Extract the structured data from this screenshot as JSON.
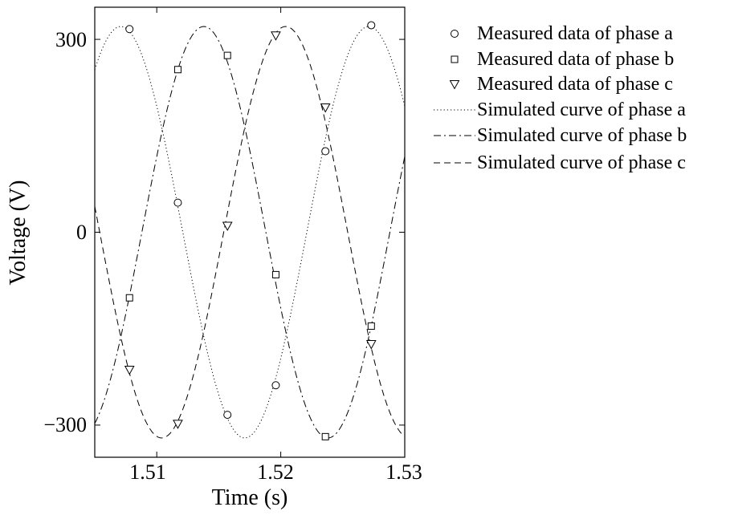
{
  "chart_data": {
    "type": "line",
    "xlabel": "Time (s)",
    "ylabel": "Voltage (V)",
    "xlim": [
      1.505,
      1.53
    ],
    "ylim": [
      -350,
      350
    ],
    "x_ticks": [
      1.51,
      1.52,
      1.53
    ],
    "x_tick_labels": [
      "1.51",
      "1.52",
      "1.53"
    ],
    "y_ticks": [
      300,
      0,
      -300
    ],
    "y_tick_labels": [
      "300",
      "0",
      "−300"
    ],
    "grid": false,
    "legend_position": "outside-right",
    "series": [
      {
        "name": "Measured data of phase a",
        "marker": "circle",
        "points": [
          {
            "x": 1.5078,
            "y": 316
          },
          {
            "x": 1.5117,
            "y": 46
          },
          {
            "x": 1.5157,
            "y": -284
          },
          {
            "x": 1.5196,
            "y": -238
          },
          {
            "x": 1.5236,
            "y": 126
          },
          {
            "x": 1.5273,
            "y": 322
          }
        ]
      },
      {
        "name": "Measured data of phase b",
        "marker": "square",
        "points": [
          {
            "x": 1.5078,
            "y": -102
          },
          {
            "x": 1.5117,
            "y": 253
          },
          {
            "x": 1.5157,
            "y": 275
          },
          {
            "x": 1.5196,
            "y": -66
          },
          {
            "x": 1.5236,
            "y": -318
          },
          {
            "x": 1.5273,
            "y": -146
          }
        ]
      },
      {
        "name": "Measured data of phase c",
        "marker": "triangle-down",
        "points": [
          {
            "x": 1.5078,
            "y": -214
          },
          {
            "x": 1.5117,
            "y": -298
          },
          {
            "x": 1.5157,
            "y": 10
          },
          {
            "x": 1.5196,
            "y": 306
          },
          {
            "x": 1.5236,
            "y": 194
          },
          {
            "x": 1.5273,
            "y": -174
          }
        ]
      },
      {
        "name": "Simulated curve of phase a",
        "line_style": "dotted",
        "amplitude": 320,
        "frequency_hz": 50,
        "peak_time_s": 1.5071
      },
      {
        "name": "Simulated curve of phase b",
        "line_style": "dash-dot",
        "amplitude": 320,
        "frequency_hz": 50,
        "peak_time_s": 1.5138
      },
      {
        "name": "Simulated curve of phase c",
        "line_style": "dashed",
        "amplitude": 320,
        "frequency_hz": 50,
        "peak_time_s": 1.5204
      }
    ]
  }
}
